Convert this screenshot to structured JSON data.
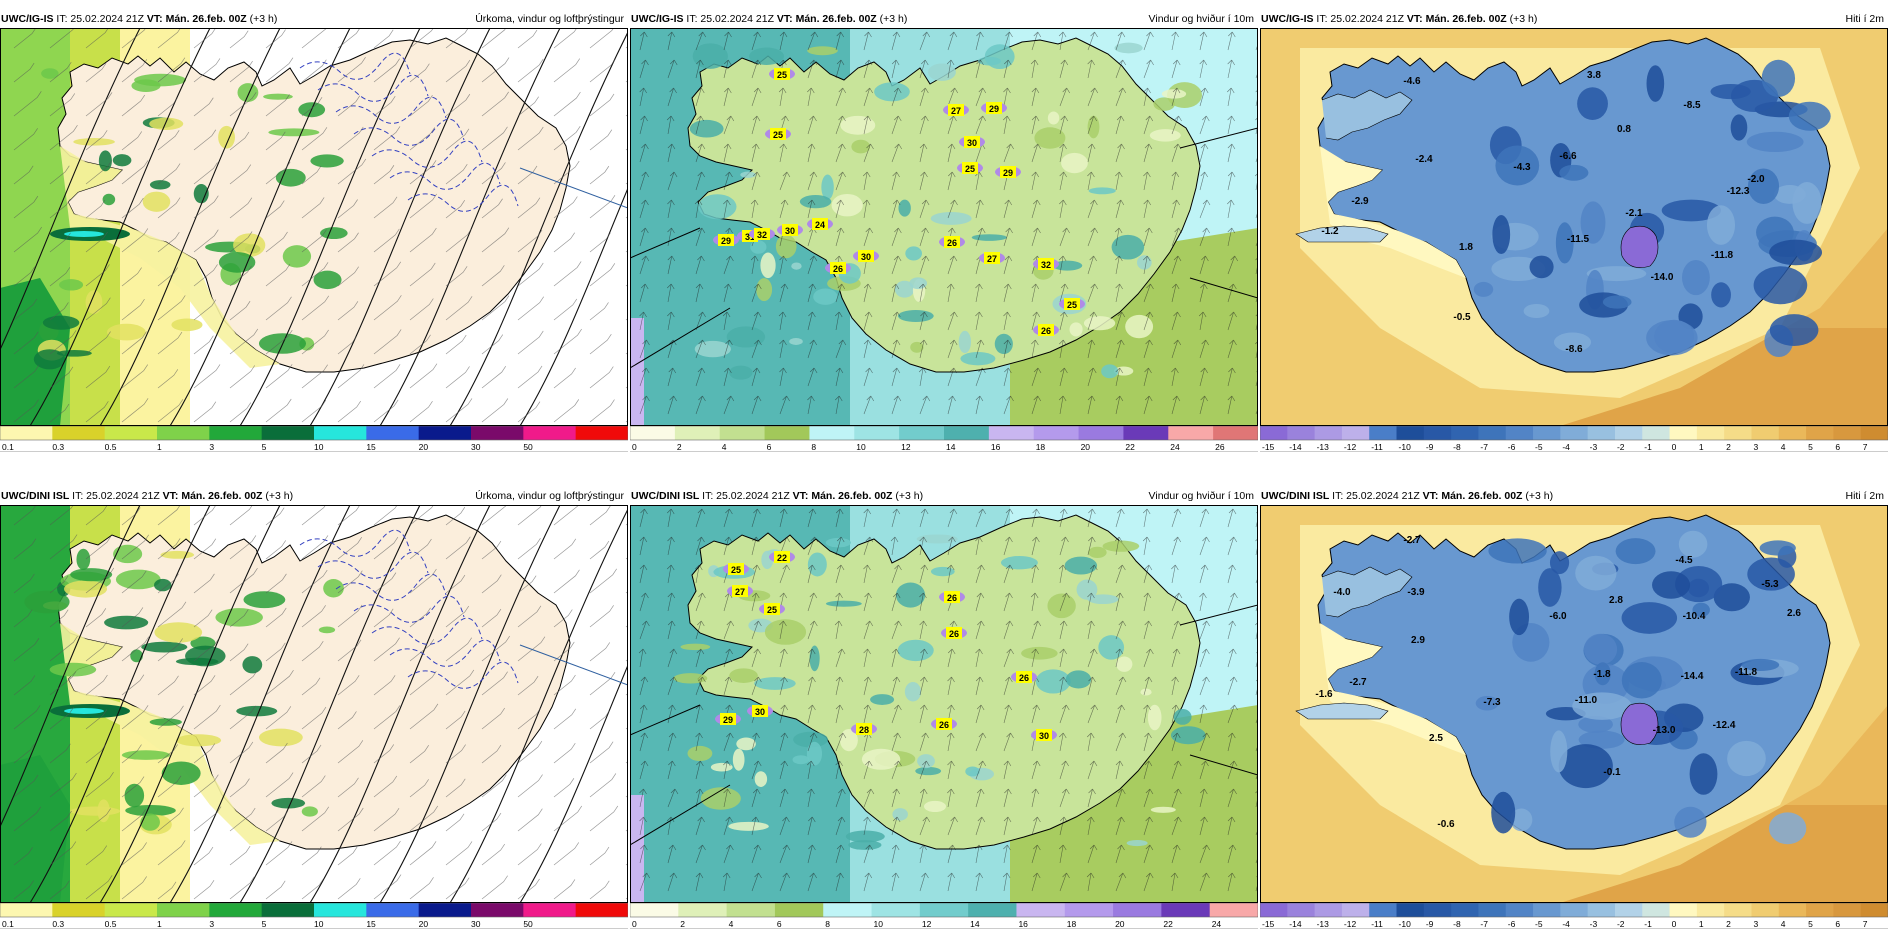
{
  "rows": [
    {
      "model": "UWC/IG-IS",
      "panels": [
        {
          "model": "UWC/IG-IS",
          "it": "IT: 25.02.2024 21Z",
          "vt": "VT: Mán. 26.feb. 00Z",
          "lead": "(+3 h)",
          "title": "Úrkoma, vindur og loftþrýstingur",
          "kind": "precip"
        },
        {
          "model": "UWC/IG-IS",
          "it": "IT: 25.02.2024 21Z",
          "vt": "VT: Mán. 26.feb. 00Z",
          "lead": "(+3 h)",
          "title": "Vindur og hviður í 10m",
          "kind": "wind"
        },
        {
          "model": "UWC/IG-IS",
          "it": "IT: 25.02.2024 21Z",
          "vt": "VT: Mán. 26.feb. 00Z",
          "lead": "(+3 h)",
          "title": "Hiti í 2m",
          "kind": "temp"
        }
      ]
    },
    {
      "model": "UWC/DINI ISL",
      "panels": [
        {
          "model": "UWC/DINI ISL",
          "it": "IT: 25.02.2024 21Z",
          "vt": "VT: Mán. 26.feb. 00Z",
          "lead": "(+3 h)",
          "title": "Úrkoma, vindur og loftþrýstingur",
          "kind": "precip"
        },
        {
          "model": "UWC/DINI ISL",
          "it": "IT: 25.02.2024 21Z",
          "vt": "VT: Mán. 26.feb. 00Z",
          "lead": "(+3 h)",
          "title": "Vindur og hviður í 10m",
          "kind": "wind"
        },
        {
          "model": "UWC/DINI ISL",
          "it": "IT: 25.02.2024 21Z",
          "vt": "VT: Mán. 26.feb. 00Z",
          "lead": "(+3 h)",
          "title": "Hiti í 2m",
          "kind": "temp"
        }
      ]
    }
  ],
  "legends": {
    "precip": {
      "labels": [
        "0.1",
        "0.3",
        "0.5",
        "1",
        "3",
        "5",
        "10",
        "15",
        "20",
        "30",
        "50"
      ],
      "colors": [
        "#fdf7b0",
        "#d9d22a",
        "#c9e84a",
        "#7fd24a",
        "#22a83a",
        "#0a6e3a",
        "#26e6dc",
        "#3a6be8",
        "#0a1a8c",
        "#7a0a6a",
        "#f01a8a",
        "#f00a0a"
      ]
    },
    "wind_top": {
      "labels": [
        "0",
        "2",
        "4",
        "6",
        "8",
        "10",
        "12",
        "14",
        "16",
        "18",
        "20",
        "22",
        "24",
        "26"
      ],
      "colors": [
        "#fbfbe6",
        "#dff0b8",
        "#c2e090",
        "#a2c85a",
        "#bff4f6",
        "#9ee4e4",
        "#72cccc",
        "#4eb0ae",
        "#c9b6f0",
        "#b49aec",
        "#9a7ae0",
        "#6a3ab8",
        "#f8a8a8",
        "#e07676"
      ]
    },
    "wind_bottom": {
      "labels": [
        "0",
        "2",
        "4",
        "6",
        "8",
        "10",
        "12",
        "14",
        "16",
        "18",
        "20",
        "22",
        "24"
      ],
      "colors": [
        "#fbfbe6",
        "#dff0b8",
        "#c2e090",
        "#a2c85a",
        "#bff4f6",
        "#9ee4e4",
        "#72cccc",
        "#4eb0ae",
        "#c9b6f0",
        "#b49aec",
        "#9a7ae0",
        "#6a3ab8",
        "#f8a8a8"
      ]
    },
    "temp": {
      "labels": [
        "-15",
        "-14",
        "-13",
        "-12",
        "-11",
        "-10",
        "-9",
        "-8",
        "-7",
        "-6",
        "-5",
        "-4",
        "-3",
        "-2",
        "-1",
        "0",
        "1",
        "2",
        "3",
        "4",
        "5",
        "6",
        "7"
      ],
      "colors": [
        "#8a6ad6",
        "#9a82dc",
        "#ac9ae4",
        "#bdb0ea",
        "#4a7ec8",
        "#1e4e9a",
        "#2858a6",
        "#3064b0",
        "#3e74ba",
        "#5284c6",
        "#6898d0",
        "#80acd8",
        "#98c0e0",
        "#b2d2e8",
        "#cfe6e0",
        "#fff8c0",
        "#faeaa0",
        "#f5dc88",
        "#f0cc70",
        "#eab85a",
        "#e0a448",
        "#d8983e",
        "#cf8c30"
      ]
    }
  },
  "gust_labels_top": [
    "25",
    "25",
    "27",
    "29",
    "30",
    "25",
    "29",
    "29",
    "31",
    "32",
    "30",
    "24",
    "26",
    "30",
    "26",
    "27",
    "32",
    "25",
    "26"
  ],
  "gust_labels_bottom": [
    "25",
    "22",
    "27",
    "25",
    "26",
    "26",
    "29",
    "30",
    "28",
    "26",
    "26",
    "30"
  ],
  "temp_labels_top": [
    "-4.6",
    "3.8",
    "-8.5",
    "0.8",
    "-6.6",
    "-2.4",
    "-4.3",
    "-2.0",
    "-12.3",
    "-2.9",
    "-2.1",
    "-1.2",
    "1.8",
    "-11.5",
    "-11.8",
    "-14.0",
    "-0.5",
    "-8.6"
  ],
  "temp_labels_bottom": [
    "-2.7",
    "-4.5",
    "-4.0",
    "-3.9",
    "-5.3",
    "2.8",
    "-6.0",
    "-10.4",
    "2.6",
    "2.9",
    "-2.7",
    "-1.8",
    "-14.4",
    "-11.8",
    "-1.6",
    "-7.3",
    "-11.0",
    "2.5",
    "-13.0",
    "-12.4",
    "-0.1",
    "-0.6"
  ]
}
